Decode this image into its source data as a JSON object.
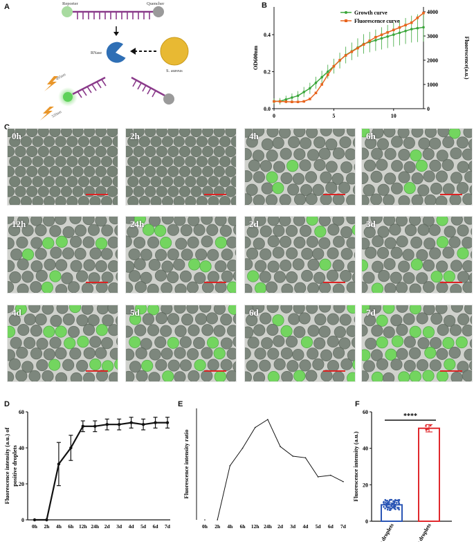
{
  "panels": {
    "a": "A",
    "b": "B",
    "c": "C",
    "d": "D",
    "e": "E",
    "f": "F"
  },
  "schematic": {
    "reporter": "Reporter",
    "quencher": "Quencher",
    "rnase": "RNase",
    "bacteria": "S. aureus",
    "excitation": "495nm",
    "emission": "520nm"
  },
  "colors": {
    "growth": "#3aa63a",
    "fluorescence": "#e8641e",
    "negative": "#2a55b5",
    "positive": "#e0282c",
    "probe": "#8a3a8a",
    "droplet_green": "#6fd65a"
  },
  "chart_data": [
    {
      "id": "B",
      "type": "line",
      "title": "",
      "xlabel": "",
      "ylabel": "OD600nm",
      "y2label": "Fluorescence(a.u.)",
      "xlim": [
        0,
        12.5
      ],
      "ylim": [
        0,
        0.55
      ],
      "y2lim": [
        0,
        4200
      ],
      "xticks": [
        "0",
        "5",
        "10"
      ],
      "yticks": [
        "0.0",
        "0.2",
        "0.4"
      ],
      "y2ticks": [
        "0",
        "1000",
        "2000",
        "3000",
        "4000"
      ],
      "legend_position": "top-right",
      "series": [
        {
          "name": "Growth curve",
          "axis": "left",
          "x": [
            0,
            0.5,
            1,
            1.5,
            2,
            2.5,
            3,
            3.5,
            4,
            4.5,
            5,
            5.5,
            6,
            6.5,
            7,
            7.5,
            8,
            8.5,
            9,
            9.5,
            10,
            10.5,
            11,
            11.5,
            12,
            12.5
          ],
          "y": [
            0.04,
            0.04,
            0.05,
            0.06,
            0.07,
            0.09,
            0.11,
            0.14,
            0.17,
            0.2,
            0.23,
            0.26,
            0.29,
            0.31,
            0.33,
            0.35,
            0.36,
            0.37,
            0.38,
            0.39,
            0.4,
            0.41,
            0.42,
            0.43,
            0.435,
            0.44
          ]
        },
        {
          "name": "Fluorescence curve",
          "axis": "right",
          "x": [
            0,
            0.5,
            1,
            1.5,
            2,
            2.5,
            3,
            3.5,
            4,
            4.5,
            5,
            5.5,
            6,
            6.5,
            7,
            7.5,
            8,
            8.5,
            9,
            9.5,
            10,
            10.5,
            11,
            11.5,
            12,
            12.5
          ],
          "y": [
            300,
            300,
            290,
            280,
            280,
            300,
            400,
            650,
            1000,
            1400,
            1750,
            2000,
            2200,
            2350,
            2500,
            2650,
            2800,
            2950,
            3050,
            3150,
            3250,
            3350,
            3450,
            3550,
            3750,
            3950
          ]
        }
      ]
    },
    {
      "id": "D",
      "type": "line",
      "xlabel": "",
      "ylabel": "Fluorescence intensity (a.u.) of positive droplets",
      "ylim": [
        0,
        60
      ],
      "yticks": [
        "0",
        "20",
        "40",
        "60"
      ],
      "categories": [
        "0h",
        "2h",
        "4h",
        "6h",
        "12h",
        "24h",
        "2d",
        "3d",
        "4d",
        "5d",
        "6d",
        "7d"
      ],
      "series": [
        {
          "name": "Positive droplets",
          "values": [
            0,
            0,
            31,
            40,
            52,
            52,
            53,
            53,
            54,
            53,
            54,
            54
          ],
          "errors": [
            0,
            0,
            12,
            7,
            3,
            3,
            3,
            3,
            3,
            3,
            3,
            3
          ]
        }
      ]
    },
    {
      "id": "E",
      "type": "line",
      "xlabel": "",
      "ylabel": "Fluorescence intensity ratio",
      "categories": [
        "0h",
        "2h",
        "4h",
        "6h",
        "12h",
        "24h",
        "2d",
        "3d",
        "4d",
        "5d",
        "6d",
        "7d"
      ],
      "series": [
        {
          "name": "Ratio",
          "values": [
            0,
            0,
            3.4,
            4.5,
            5.8,
            6.3,
            4.6,
            4.0,
            3.9,
            2.7,
            2.8,
            2.4
          ]
        }
      ],
      "ylim": [
        0,
        7
      ]
    },
    {
      "id": "F",
      "type": "bar",
      "xlabel": "",
      "ylabel": "Fluorescence intensity  (a.u.)",
      "ylim": [
        0,
        60
      ],
      "yticks": [
        "0",
        "20",
        "40",
        "60"
      ],
      "categories": [
        "Negative droplets",
        "Positive droplets"
      ],
      "values": [
        9,
        51
      ],
      "errors": [
        1,
        2
      ],
      "annotation": "****"
    }
  ],
  "microscopy": {
    "tiles": [
      {
        "label": "0h",
        "positives": 0
      },
      {
        "label": "2h",
        "positives": 0
      },
      {
        "label": "4h",
        "positives": 7
      },
      {
        "label": "6h",
        "positives": 8
      },
      {
        "label": "12h",
        "positives": 8
      },
      {
        "label": "24h",
        "positives": 8
      },
      {
        "label": "2d",
        "positives": 8
      },
      {
        "label": "3d",
        "positives": 8
      },
      {
        "label": "4d",
        "positives": 14
      },
      {
        "label": "5d",
        "positives": 14
      },
      {
        "label": "6d",
        "positives": 14
      },
      {
        "label": "7d",
        "positives": 22
      }
    ]
  }
}
